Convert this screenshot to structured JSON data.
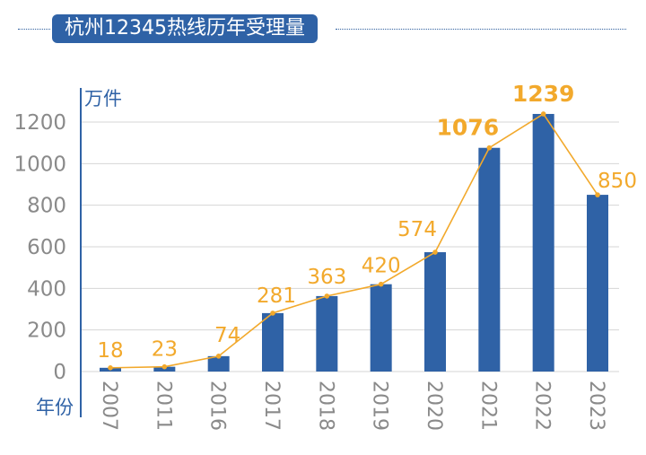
{
  "title": "杭州12345热线历年受理量",
  "colors": {
    "bar": "#2f62a6",
    "line": "#f2a92c",
    "grid": "#d6d6d6",
    "axis": "#2f62a6",
    "title_bg": "#2f62a6"
  },
  "chart_data": {
    "type": "bar",
    "categories": [
      "2007",
      "2011",
      "2016",
      "2017",
      "2018",
      "2019",
      "2020",
      "2021",
      "2022",
      "2023"
    ],
    "values": [
      18,
      23,
      74,
      281,
      363,
      420,
      574,
      1076,
      1239,
      850
    ],
    "data_labels": [
      "18",
      "23",
      "74",
      "281",
      "363",
      "420",
      "574",
      "1076",
      "1239",
      "850"
    ],
    "bold_labels": [
      "1076",
      "1239"
    ],
    "overlay_line": true,
    "yunit": "万件",
    "xunit": "年份",
    "yticks": [
      0,
      200,
      400,
      600,
      800,
      1000,
      1200
    ],
    "ylim": [
      0,
      1300
    ],
    "grid": true,
    "legend": "none"
  }
}
